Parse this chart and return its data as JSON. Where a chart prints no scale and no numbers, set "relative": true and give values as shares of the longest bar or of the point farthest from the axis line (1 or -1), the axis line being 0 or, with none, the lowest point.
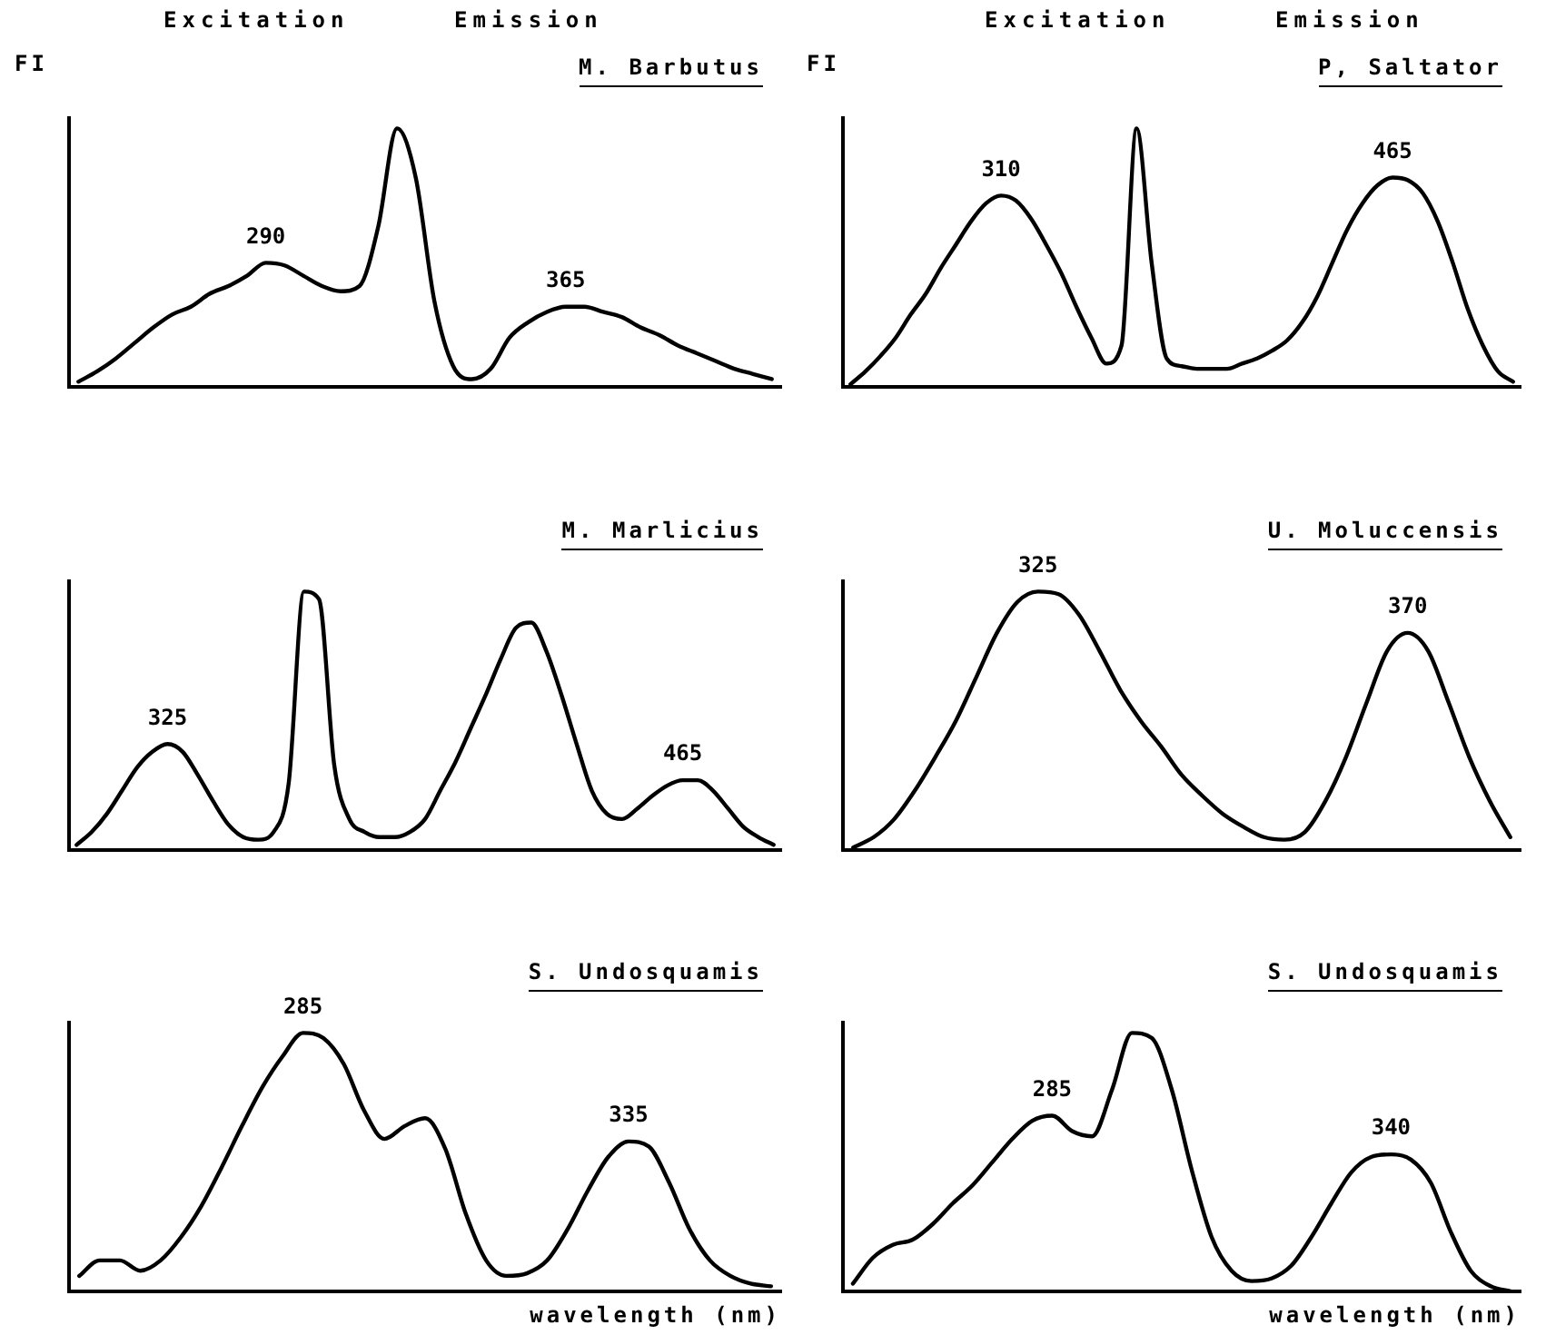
{
  "chart_data": [
    {
      "type": "line",
      "title": "M. Barbutus",
      "ylabel": "FI",
      "annotations": [
        "Excitation",
        "Emission",
        {
          "text": "290",
          "y": 0.48
        },
        {
          "text": "365",
          "y": 0.31
        }
      ],
      "relative": true,
      "grid": false,
      "legend": false,
      "tick_labels": false,
      "marker": "none",
      "line_style": "solid",
      "color": "#000000",
      "categories": [
        null,
        null,
        null,
        null,
        null,
        null,
        null,
        null,
        null,
        null,
        null,
        null,
        null,
        null,
        null,
        null,
        null,
        null,
        null,
        null,
        null,
        null,
        null,
        null,
        null,
        null,
        null,
        null,
        null,
        null,
        null,
        null,
        null,
        null,
        null,
        null,
        null,
        null
      ],
      "values": [
        0.02,
        0.06,
        0.11,
        0.17,
        0.23,
        0.28,
        0.31,
        0.36,
        0.39,
        0.43,
        0.48,
        0.47,
        0.43,
        0.39,
        0.37,
        0.39,
        0.62,
        1,
        0.81,
        0.33,
        0.08,
        0.03,
        0.07,
        0.19,
        0.25,
        0.29,
        0.31,
        0.31,
        0.29,
        0.27,
        0.23,
        0.2,
        0.16,
        0.13,
        0.1,
        0.07,
        0.05,
        0.03
      ]
    },
    {
      "type": "line",
      "title": "P, Saltator",
      "ylabel": "FI",
      "annotations": [
        "Excitation",
        "Emission",
        {
          "text": "310",
          "y": 0.74
        },
        {
          "text": "465",
          "y": 0.81
        }
      ],
      "relative": true,
      "grid": false,
      "legend": false,
      "tick_labels": false,
      "marker": "none",
      "line_style": "solid",
      "color": "#000000",
      "categories": [
        null,
        null,
        null,
        null,
        null,
        null,
        null,
        null,
        null,
        null,
        null,
        null,
        null,
        null,
        null,
        null,
        null,
        null,
        null,
        null,
        null,
        null,
        null,
        null,
        null,
        null,
        null,
        null,
        null,
        null,
        null,
        null,
        null,
        null,
        null,
        null,
        null,
        null,
        null,
        null,
        null,
        null,
        null,
        null,
        null
      ],
      "values": [
        0.01,
        0.06,
        0.12,
        0.19,
        0.28,
        0.36,
        0.46,
        0.55,
        0.64,
        0.71,
        0.74,
        0.72,
        0.65,
        0.55,
        0.44,
        0.31,
        0.19,
        0.09,
        0.16,
        1,
        0.48,
        0.11,
        0.08,
        0.07,
        0.07,
        0.07,
        0.09,
        0.11,
        0.14,
        0.18,
        0.25,
        0.35,
        0.48,
        0.61,
        0.71,
        0.78,
        0.81,
        0.8,
        0.75,
        0.64,
        0.48,
        0.3,
        0.16,
        0.06,
        0.02
      ]
    },
    {
      "type": "line",
      "title": "M. Marlicius",
      "annotations": [
        {
          "text": "325",
          "y": 0.41
        },
        {
          "text": "465",
          "y": 0.27
        }
      ],
      "relative": true,
      "grid": false,
      "legend": false,
      "tick_labels": false,
      "marker": "none",
      "line_style": "solid",
      "color": "#000000",
      "categories": [
        null,
        null,
        null,
        null,
        null,
        null,
        null,
        null,
        null,
        null,
        null,
        null,
        null,
        null,
        null,
        null,
        null,
        null,
        null,
        null,
        null,
        null,
        null,
        null,
        null,
        null,
        null,
        null,
        null,
        null,
        null,
        null,
        null,
        null,
        null,
        null,
        null,
        null,
        null,
        null,
        null,
        null,
        null,
        null,
        null,
        null,
        null
      ],
      "values": [
        0.02,
        0.07,
        0.14,
        0.23,
        0.32,
        0.38,
        0.41,
        0.38,
        0.29,
        0.19,
        0.1,
        0.05,
        0.04,
        0.07,
        0.26,
        1,
        0.97,
        0.33,
        0.12,
        0.07,
        0.05,
        0.05,
        0.07,
        0.12,
        0.23,
        0.34,
        0.47,
        0.6,
        0.74,
        0.86,
        0.88,
        0.77,
        0.6,
        0.41,
        0.23,
        0.14,
        0.12,
        0.16,
        0.21,
        0.25,
        0.27,
        0.27,
        0.23,
        0.16,
        0.09,
        0.05,
        0.02
      ]
    },
    {
      "type": "line",
      "title": "U. Moluccensis",
      "annotations": [
        {
          "text": "325",
          "y": 1
        },
        {
          "text": "370",
          "y": 0.84
        }
      ],
      "relative": true,
      "grid": false,
      "legend": false,
      "tick_labels": false,
      "marker": "none",
      "line_style": "solid",
      "color": "#000000",
      "categories": [
        null,
        null,
        null,
        null,
        null,
        null,
        null,
        null,
        null,
        null,
        null,
        null,
        null,
        null,
        null,
        null,
        null,
        null,
        null,
        null,
        null,
        null,
        null,
        null,
        null,
        null,
        null,
        null,
        null,
        null,
        null,
        null,
        null
      ],
      "values": [
        0.01,
        0.05,
        0.12,
        0.23,
        0.36,
        0.5,
        0.67,
        0.84,
        0.96,
        1,
        0.99,
        0.91,
        0.77,
        0.62,
        0.5,
        0.4,
        0.29,
        0.21,
        0.14,
        0.09,
        0.05,
        0.04,
        0.07,
        0.19,
        0.36,
        0.57,
        0.77,
        0.84,
        0.77,
        0.57,
        0.36,
        0.19,
        0.05
      ]
    },
    {
      "type": "line",
      "title": "S. Undosquamis",
      "xlabel": "wavelength (nm)",
      "annotations": [
        {
          "text": "285",
          "y": 1
        },
        {
          "text": "335",
          "y": 0.58
        }
      ],
      "relative": true,
      "grid": false,
      "legend": false,
      "tick_labels": false,
      "marker": "none",
      "line_style": "solid",
      "color": "#000000",
      "categories": [
        null,
        null,
        null,
        null,
        null,
        null,
        null,
        null,
        null,
        null,
        null,
        null,
        null,
        null,
        null,
        null,
        null,
        null,
        null,
        null,
        null,
        null,
        null,
        null,
        null,
        null,
        null,
        null,
        null,
        null,
        null,
        null,
        null,
        null,
        null
      ],
      "values": [
        0.06,
        0.12,
        0.12,
        0.08,
        0.12,
        0.21,
        0.33,
        0.48,
        0.64,
        0.79,
        0.91,
        1,
        0.98,
        0.88,
        0.7,
        0.59,
        0.64,
        0.67,
        0.55,
        0.3,
        0.12,
        0.06,
        0.07,
        0.12,
        0.24,
        0.39,
        0.52,
        0.58,
        0.56,
        0.42,
        0.24,
        0.12,
        0.06,
        0.03,
        0.02
      ]
    },
    {
      "type": "line",
      "title": "S. Undosquamis",
      "xlabel": "wavelength (nm)",
      "annotations": [
        {
          "text": "285",
          "y": 0.68
        },
        {
          "text": "340",
          "y": 0.53
        }
      ],
      "relative": true,
      "grid": false,
      "legend": false,
      "tick_labels": false,
      "marker": "none",
      "line_style": "solid",
      "color": "#000000",
      "categories": [
        null,
        null,
        null,
        null,
        null,
        null,
        null,
        null,
        null,
        null,
        null,
        null,
        null,
        null,
        null,
        null,
        null,
        null,
        null,
        null,
        null,
        null,
        null,
        null,
        null,
        null,
        null,
        null,
        null,
        null,
        null,
        null,
        null,
        null
      ],
      "values": [
        0.03,
        0.13,
        0.18,
        0.2,
        0.26,
        0.34,
        0.41,
        0.5,
        0.59,
        0.66,
        0.68,
        0.62,
        0.6,
        0.78,
        1,
        0.98,
        0.78,
        0.47,
        0.21,
        0.08,
        0.04,
        0.05,
        0.1,
        0.21,
        0.34,
        0.46,
        0.52,
        0.53,
        0.51,
        0.42,
        0.23,
        0.08,
        0.02,
        0
      ]
    }
  ]
}
